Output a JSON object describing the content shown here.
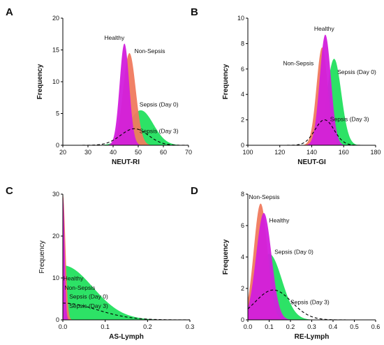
{
  "colors": {
    "healthy": "#d21edc",
    "non_sepsis": "#f07a5e",
    "sepsis_day0": "#22e05e",
    "sepsis_day3": "#000000"
  },
  "chart_data": [
    {
      "type": "area",
      "panel_label": "A",
      "xlabel": "NEUT-RI",
      "ylabel": "Frequency",
      "xlim": [
        20,
        70
      ],
      "ylim": [
        0,
        20
      ],
      "xticks": [
        20,
        30,
        40,
        50,
        60,
        70
      ],
      "yticks": [
        0,
        5,
        10,
        15,
        20
      ],
      "series": [
        {
          "name": "Sepsis (Day 0)",
          "color": "sepsis_day0",
          "style": "fill",
          "dist": {
            "mu": 51,
            "sigma": 5,
            "peak": 5.5
          },
          "label": {
            "x": 50.5,
            "y": 6.1
          }
        },
        {
          "name": "Non-Sepsis",
          "color": "non_sepsis",
          "style": "fill",
          "dist": {
            "mu": 46.5,
            "sigma": 2.5,
            "peak": 14.5
          },
          "label": {
            "x": 48.5,
            "y": 14.5
          }
        },
        {
          "name": "Healthy",
          "color": "healthy",
          "style": "fill",
          "dist": {
            "mu": 44.5,
            "sigma": 1.9,
            "peak": 16
          },
          "label": {
            "x": 36.5,
            "y": 16.6
          }
        },
        {
          "name": "Sepsis (Day 3)",
          "color": "sepsis_day3",
          "style": "dashed",
          "dist": {
            "mu": 48.5,
            "sigma": 5.5,
            "peak": 2.6
          },
          "label": {
            "x": 50.5,
            "y": 1.9
          }
        }
      ]
    },
    {
      "type": "area",
      "panel_label": "B",
      "xlabel": "NEUT-GI",
      "ylabel": "Frequency",
      "xlim": [
        100,
        180
      ],
      "ylim": [
        0,
        10
      ],
      "xticks": [
        100,
        120,
        140,
        160,
        180
      ],
      "yticks": [
        0,
        2,
        4,
        6,
        8,
        10
      ],
      "series": [
        {
          "name": "Sepsis (Day 0)",
          "color": "sepsis_day0",
          "style": "fill",
          "dist": {
            "mu": 154,
            "sigma": 4.5,
            "peak": 6.8
          },
          "label": {
            "x": 156,
            "y": 5.6
          }
        },
        {
          "name": "Non-Sepsis",
          "color": "non_sepsis",
          "style": "fill",
          "dist": {
            "mu": 146.5,
            "sigma": 3.5,
            "peak": 7.7
          },
          "label": {
            "x": 122,
            "y": 6.3
          }
        },
        {
          "name": "Healthy",
          "color": "healthy",
          "style": "fill",
          "dist": {
            "mu": 148.5,
            "sigma": 3.5,
            "peak": 8.7
          },
          "label": {
            "x": 141.5,
            "y": 9.0
          }
        },
        {
          "name": "Sepsis (Day 3)",
          "color": "sepsis_day3",
          "style": "dashed",
          "dist": {
            "mu": 148,
            "sigma": 6,
            "peak": 2.0
          },
          "label": {
            "x": 151.5,
            "y": 1.9
          }
        }
      ]
    },
    {
      "type": "area",
      "panel_label": "C",
      "xlabel": "AS-Lymph",
      "ylabel": "Frequency",
      "xlim": [
        0,
        0.3
      ],
      "ylim": [
        0,
        30
      ],
      "xticks": [
        0.0,
        0.1,
        0.2,
        0.3
      ],
      "yticks": [
        0,
        10,
        20,
        30
      ],
      "tick_decimals": 1,
      "series": [
        {
          "name": "Sepsis (Day 0)",
          "color": "sepsis_day0",
          "style": "fill",
          "dist": {
            "mu": 0,
            "sigma": 0.07,
            "peak": 13
          },
          "label": {
            "x": 0.015,
            "y": 5.1
          }
        },
        {
          "name": "Non-Sepsis",
          "color": "non_sepsis",
          "style": "fill",
          "dist": {
            "mu": 0,
            "sigma": 0.006,
            "peak": 30
          },
          "label": {
            "x": 0.004,
            "y": 7.2
          }
        },
        {
          "name": "Healthy",
          "color": "healthy",
          "style": "fill",
          "dist": {
            "mu": 0,
            "sigma": 0.004,
            "peak": 30
          },
          "label": {
            "x": 0.001,
            "y": 9.4
          }
        },
        {
          "name": "Sepsis (Day 3)",
          "color": "sepsis_day3",
          "style": "dashed",
          "dist": {
            "mu": 0,
            "sigma": 0.08,
            "peak": 4
          },
          "label": {
            "x": 0.015,
            "y": 2.8
          }
        }
      ]
    },
    {
      "type": "area",
      "panel_label": "D",
      "xlabel": "RE-Lymph",
      "ylabel": "Frequency",
      "xlim": [
        0,
        0.6
      ],
      "ylim": [
        0,
        8
      ],
      "xticks": [
        0.0,
        0.1,
        0.2,
        0.3,
        0.4,
        0.5,
        0.6
      ],
      "yticks": [
        0,
        2,
        4,
        6,
        8
      ],
      "tick_decimals": 1,
      "series": [
        {
          "name": "Sepsis (Day 0)",
          "color": "sepsis_day0",
          "style": "fill",
          "dist": {
            "mu": 0.1,
            "sigma": 0.06,
            "peak": 4.2
          },
          "label": {
            "x": 0.125,
            "y": 4.2
          }
        },
        {
          "name": "Non-Sepsis",
          "color": "non_sepsis",
          "style": "fill",
          "dist": {
            "mu": 0.06,
            "sigma": 0.032,
            "peak": 7.4
          },
          "label": {
            "x": 0.005,
            "y": 7.7
          }
        },
        {
          "name": "Healthy",
          "color": "healthy",
          "style": "fill",
          "dist": {
            "mu": 0.075,
            "sigma": 0.036,
            "peak": 6.8
          },
          "label": {
            "x": 0.1,
            "y": 6.2
          }
        },
        {
          "name": "Sepsis (Day 3)",
          "color": "sepsis_day3",
          "style": "dashed",
          "dist": {
            "mu": 0.12,
            "sigma": 0.085,
            "peak": 1.9
          },
          "label": {
            "x": 0.2,
            "y": 1.0
          }
        }
      ]
    }
  ]
}
